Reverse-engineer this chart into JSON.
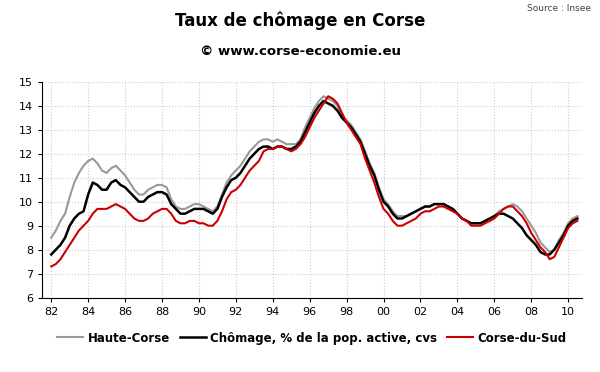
{
  "title": "Taux de chômage en Corse",
  "subtitle": "© www.corse-economie.eu",
  "source": "Source : Insee",
  "ylim": [
    6,
    15
  ],
  "yticks": [
    6,
    7,
    8,
    9,
    10,
    11,
    12,
    13,
    14,
    15
  ],
  "xtick_labels": [
    "82",
    "84",
    "86",
    "88",
    "90",
    "92",
    "94",
    "96",
    "98",
    "00",
    "02",
    "04",
    "06",
    "08",
    "10"
  ],
  "xtick_positions": [
    1982,
    1984,
    1986,
    1988,
    1990,
    1992,
    1994,
    1996,
    1998,
    2000,
    2002,
    2004,
    2006,
    2008,
    2010
  ],
  "xlim": [
    1981.5,
    2010.75
  ],
  "background_color": "#ffffff",
  "grid_color": "#cccccc",
  "legend": [
    {
      "label": "Chômage, % de la pop. active, cvs",
      "color": "#000000",
      "lw": 1.8
    },
    {
      "label": "Haute-Corse",
      "color": "#999999",
      "lw": 1.5
    },
    {
      "label": "Corse-du-Sud",
      "color": "#cc0000",
      "lw": 1.5
    }
  ],
  "corse_x": [
    1982.0,
    1982.25,
    1982.5,
    1982.75,
    1983.0,
    1983.25,
    1983.5,
    1983.75,
    1984.0,
    1984.25,
    1984.5,
    1984.75,
    1985.0,
    1985.25,
    1985.5,
    1985.75,
    1986.0,
    1986.25,
    1986.5,
    1986.75,
    1987.0,
    1987.25,
    1987.5,
    1987.75,
    1988.0,
    1988.25,
    1988.5,
    1988.75,
    1989.0,
    1989.25,
    1989.5,
    1989.75,
    1990.0,
    1990.25,
    1990.5,
    1990.75,
    1991.0,
    1991.25,
    1991.5,
    1991.75,
    1992.0,
    1992.25,
    1992.5,
    1992.75,
    1993.0,
    1993.25,
    1993.5,
    1993.75,
    1994.0,
    1994.25,
    1994.5,
    1994.75,
    1995.0,
    1995.25,
    1995.5,
    1995.75,
    1996.0,
    1996.25,
    1996.5,
    1996.75,
    1997.0,
    1997.25,
    1997.5,
    1997.75,
    1998.0,
    1998.25,
    1998.5,
    1998.75,
    1999.0,
    1999.25,
    1999.5,
    1999.75,
    2000.0,
    2000.25,
    2000.5,
    2000.75,
    2001.0,
    2001.25,
    2001.5,
    2001.75,
    2002.0,
    2002.25,
    2002.5,
    2002.75,
    2003.0,
    2003.25,
    2003.5,
    2003.75,
    2004.0,
    2004.25,
    2004.5,
    2004.75,
    2005.0,
    2005.25,
    2005.5,
    2005.75,
    2006.0,
    2006.25,
    2006.5,
    2006.75,
    2007.0,
    2007.25,
    2007.5,
    2007.75,
    2008.0,
    2008.25,
    2008.5,
    2008.75,
    2009.0,
    2009.25,
    2009.5,
    2009.75,
    2010.0,
    2010.25,
    2010.5
  ],
  "chomage_y": [
    7.8,
    8.0,
    8.2,
    8.5,
    9.0,
    9.3,
    9.5,
    9.6,
    10.3,
    10.8,
    10.7,
    10.5,
    10.5,
    10.8,
    10.9,
    10.7,
    10.6,
    10.4,
    10.2,
    10.0,
    10.0,
    10.2,
    10.3,
    10.4,
    10.4,
    10.3,
    9.9,
    9.7,
    9.5,
    9.5,
    9.6,
    9.7,
    9.7,
    9.7,
    9.6,
    9.5,
    9.7,
    10.2,
    10.6,
    10.9,
    11.0,
    11.2,
    11.5,
    11.8,
    12.0,
    12.2,
    12.3,
    12.3,
    12.2,
    12.3,
    12.3,
    12.2,
    12.2,
    12.3,
    12.5,
    12.9,
    13.3,
    13.7,
    14.0,
    14.2,
    14.1,
    14.0,
    13.8,
    13.5,
    13.3,
    13.1,
    12.8,
    12.5,
    12.0,
    11.5,
    11.1,
    10.5,
    10.0,
    9.8,
    9.5,
    9.3,
    9.3,
    9.4,
    9.5,
    9.6,
    9.7,
    9.8,
    9.8,
    9.9,
    9.9,
    9.9,
    9.8,
    9.7,
    9.5,
    9.3,
    9.2,
    9.1,
    9.1,
    9.1,
    9.2,
    9.3,
    9.4,
    9.5,
    9.5,
    9.4,
    9.3,
    9.1,
    8.9,
    8.6,
    8.4,
    8.2,
    7.9,
    7.8,
    7.8,
    8.0,
    8.3,
    8.6,
    9.0,
    9.2,
    9.3
  ],
  "haute_corse_y": [
    8.5,
    8.8,
    9.2,
    9.5,
    10.2,
    10.8,
    11.2,
    11.5,
    11.7,
    11.8,
    11.6,
    11.3,
    11.2,
    11.4,
    11.5,
    11.3,
    11.1,
    10.8,
    10.5,
    10.3,
    10.3,
    10.5,
    10.6,
    10.7,
    10.7,
    10.6,
    10.1,
    9.8,
    9.7,
    9.7,
    9.8,
    9.9,
    9.9,
    9.8,
    9.7,
    9.6,
    9.8,
    10.3,
    10.8,
    11.1,
    11.3,
    11.5,
    11.8,
    12.1,
    12.3,
    12.5,
    12.6,
    12.6,
    12.5,
    12.6,
    12.5,
    12.4,
    12.4,
    12.4,
    12.6,
    13.1,
    13.5,
    13.9,
    14.2,
    14.4,
    14.3,
    14.2,
    14.0,
    13.6,
    13.4,
    13.2,
    12.9,
    12.6,
    12.1,
    11.6,
    11.2,
    10.6,
    10.1,
    9.9,
    9.6,
    9.4,
    9.4,
    9.4,
    9.5,
    9.6,
    9.7,
    9.8,
    9.8,
    9.9,
    9.9,
    9.9,
    9.8,
    9.7,
    9.5,
    9.3,
    9.2,
    9.1,
    9.1,
    9.1,
    9.2,
    9.3,
    9.4,
    9.6,
    9.7,
    9.8,
    9.9,
    9.8,
    9.6,
    9.3,
    9.0,
    8.7,
    8.3,
    8.1,
    7.9,
    8.0,
    8.4,
    8.7,
    9.1,
    9.3,
    9.4
  ],
  "corse_du_sud_y": [
    7.3,
    7.4,
    7.6,
    7.9,
    8.2,
    8.5,
    8.8,
    9.0,
    9.2,
    9.5,
    9.7,
    9.7,
    9.7,
    9.8,
    9.9,
    9.8,
    9.7,
    9.5,
    9.3,
    9.2,
    9.2,
    9.3,
    9.5,
    9.6,
    9.7,
    9.7,
    9.5,
    9.2,
    9.1,
    9.1,
    9.2,
    9.2,
    9.1,
    9.1,
    9.0,
    9.0,
    9.2,
    9.6,
    10.1,
    10.4,
    10.5,
    10.7,
    11.0,
    11.3,
    11.5,
    11.7,
    12.1,
    12.2,
    12.2,
    12.3,
    12.3,
    12.2,
    12.1,
    12.2,
    12.4,
    12.7,
    13.1,
    13.5,
    13.8,
    14.1,
    14.4,
    14.3,
    14.1,
    13.7,
    13.3,
    13.0,
    12.7,
    12.4,
    11.8,
    11.3,
    10.8,
    10.2,
    9.7,
    9.5,
    9.2,
    9.0,
    9.0,
    9.1,
    9.2,
    9.3,
    9.5,
    9.6,
    9.6,
    9.7,
    9.8,
    9.8,
    9.7,
    9.6,
    9.5,
    9.3,
    9.2,
    9.0,
    9.0,
    9.0,
    9.1,
    9.2,
    9.3,
    9.5,
    9.7,
    9.8,
    9.8,
    9.6,
    9.4,
    9.1,
    8.7,
    8.4,
    8.1,
    7.9,
    7.6,
    7.7,
    8.1,
    8.5,
    8.9,
    9.1,
    9.2
  ]
}
